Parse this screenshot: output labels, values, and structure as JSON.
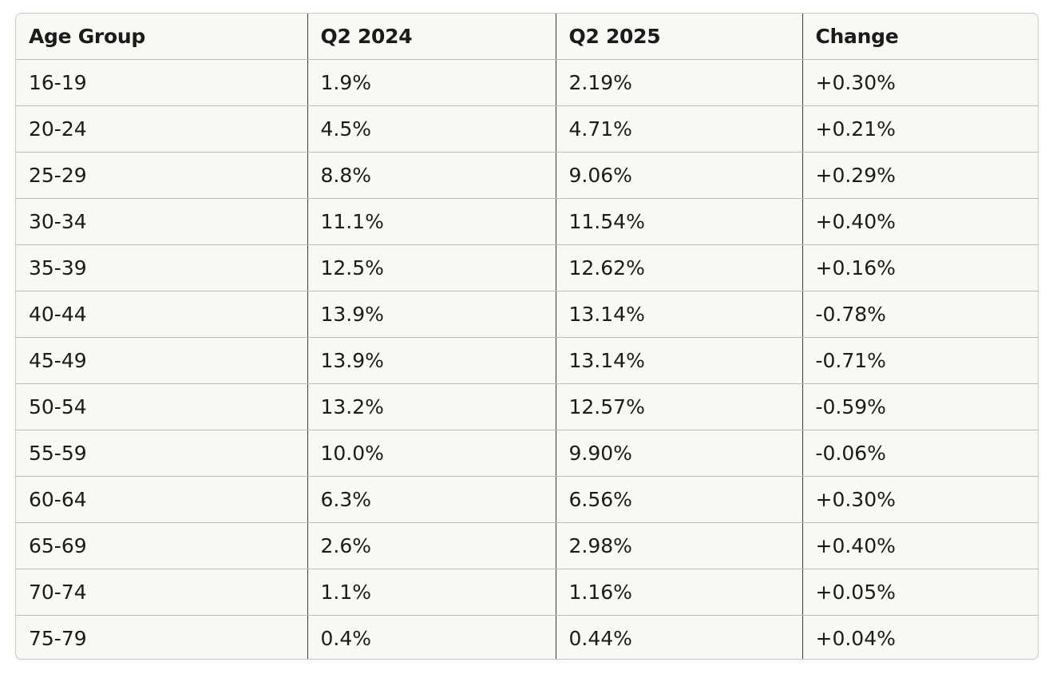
{
  "table": {
    "headers": [
      "Age Group",
      "Q2 2024",
      "Q2 2025",
      "Change"
    ],
    "rows": [
      [
        "16-19",
        "1.9%",
        "2.19%",
        "+0.30%"
      ],
      [
        "20-24",
        "4.5%",
        "4.71%",
        "+0.21%"
      ],
      [
        "25-29",
        "8.8%",
        "9.06%",
        "+0.29%"
      ],
      [
        "30-34",
        "11.1%",
        "11.54%",
        "+0.40%"
      ],
      [
        "35-39",
        "12.5%",
        "12.62%",
        "+0.16%"
      ],
      [
        "40-44",
        "13.9%",
        "13.14%",
        "-0.78%"
      ],
      [
        "45-49",
        "13.9%",
        "13.14%",
        "-0.71%"
      ],
      [
        "50-54",
        "13.2%",
        "12.57%",
        "-0.59%"
      ],
      [
        "55-59",
        "10.0%",
        "9.90%",
        "-0.06%"
      ],
      [
        "60-64",
        "6.3%",
        "6.56%",
        "+0.30%"
      ],
      [
        "65-69",
        "2.6%",
        "2.98%",
        "+0.40%"
      ],
      [
        "70-74",
        "1.1%",
        "1.16%",
        "+0.05%"
      ],
      [
        "75-79",
        "0.4%",
        "0.44%",
        "+0.04%"
      ]
    ]
  }
}
